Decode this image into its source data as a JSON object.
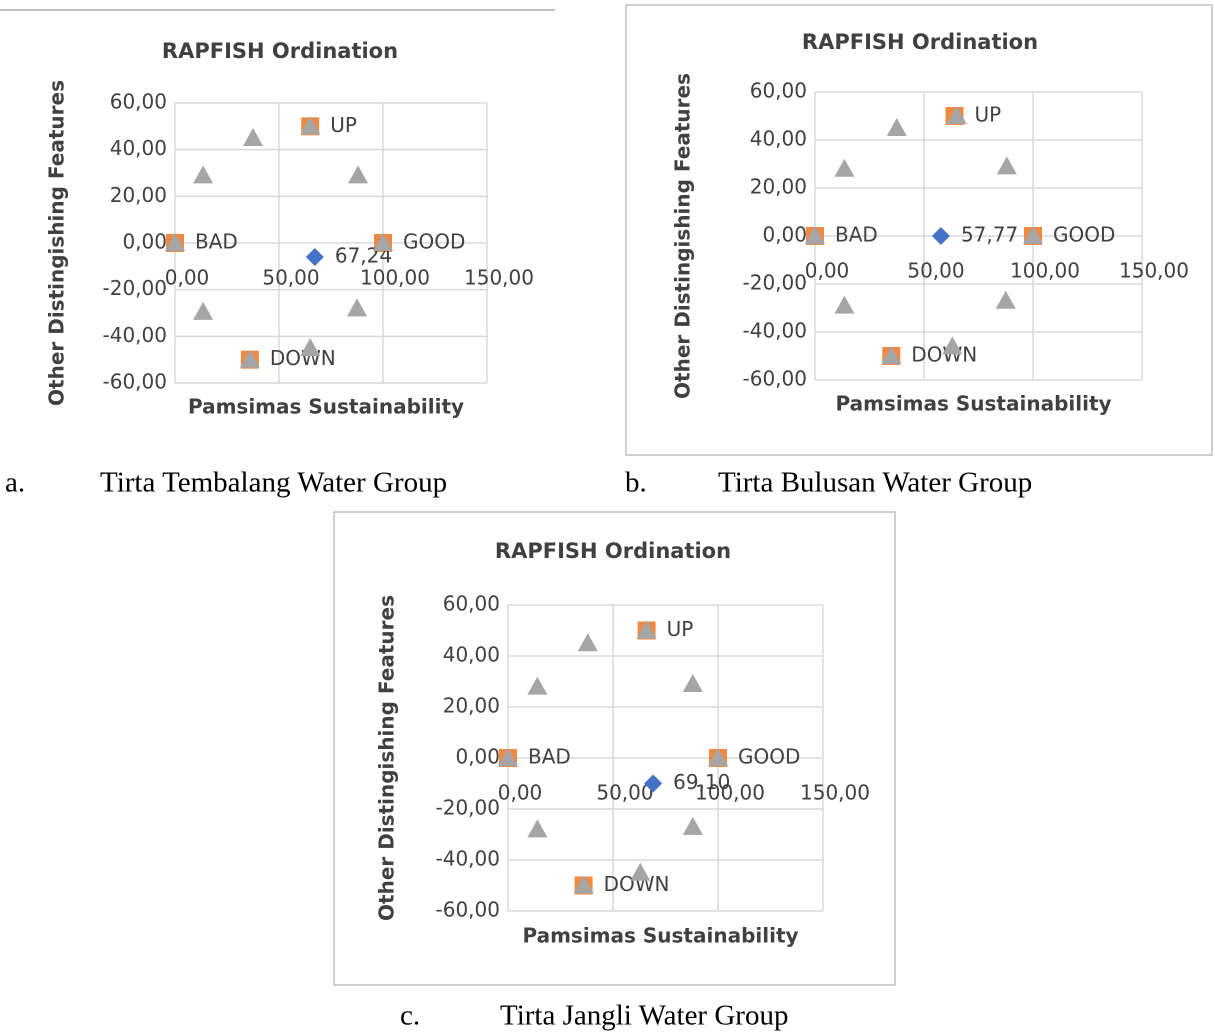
{
  "chart_data": [
    {
      "type": "scatter",
      "title": "RAPFISH Ordination",
      "x_label": "Pamsimas  Sustainability",
      "y_label": "Other Distingishing Features",
      "caption_letter": "a.",
      "caption": "Tirta Tembalang Water Group",
      "xlim": [
        0,
        150
      ],
      "ylim": [
        -60,
        60
      ],
      "xticks": [
        {
          "value": 0,
          "label": "0,00"
        },
        {
          "value": 50,
          "label": "50,00"
        },
        {
          "value": 100,
          "label": "100,00"
        },
        {
          "value": 150,
          "label": "150,00"
        }
      ],
      "yticks": [
        {
          "value": -60,
          "label": "-60,00"
        },
        {
          "value": -40,
          "label": "-40,00"
        },
        {
          "value": -20,
          "label": "-20,00"
        },
        {
          "value": 0,
          "label": "0,00"
        },
        {
          "value": 20,
          "label": "20,00"
        },
        {
          "value": 40,
          "label": "40,00"
        },
        {
          "value": 60,
          "label": "60,00"
        }
      ],
      "grid": true,
      "series": [
        {
          "marker": "triangle",
          "color": "#a5a5a5",
          "x": [
            13.5,
            37.5,
            65,
            88,
            0,
            100,
            13.5,
            87.5,
            65,
            36
          ],
          "values": [
            29,
            45,
            50,
            29,
            0,
            0,
            -29.5,
            -28,
            -45,
            -50
          ]
        },
        {
          "marker": "square",
          "color": "#ed7d31",
          "x": [
            0,
            100,
            65,
            36
          ],
          "values": [
            0,
            0,
            50,
            -50
          ],
          "labels": [
            "BAD",
            "GOOD",
            "UP",
            "DOWN"
          ]
        },
        {
          "marker": "diamond",
          "color": "#4472c4",
          "x": [
            67.24
          ],
          "values": [
            -6
          ],
          "labels": [
            "67,24"
          ]
        }
      ]
    },
    {
      "type": "scatter",
      "title": "RAPFISH Ordination",
      "x_label": "Pamsimas  Sustainability",
      "y_label": "Other Distingishing Features",
      "caption_letter": "b.",
      "caption": "Tirta Bulusan Water Group",
      "xlim": [
        0,
        150
      ],
      "ylim": [
        -60,
        60
      ],
      "xticks": [
        {
          "value": 0,
          "label": "0,00"
        },
        {
          "value": 50,
          "label": "50,00"
        },
        {
          "value": 100,
          "label": "100,00"
        },
        {
          "value": 150,
          "label": "150,00"
        }
      ],
      "yticks": [
        {
          "value": -60,
          "label": "-60,00"
        },
        {
          "value": -40,
          "label": "-40,00"
        },
        {
          "value": -20,
          "label": "-20,00"
        },
        {
          "value": 0,
          "label": "0,00"
        },
        {
          "value": 20,
          "label": "20,00"
        },
        {
          "value": 40,
          "label": "40,00"
        },
        {
          "value": 60,
          "label": "60,00"
        }
      ],
      "grid": true,
      "series": [
        {
          "marker": "triangle",
          "color": "#a5a5a5",
          "x": [
            13.5,
            37.5,
            65,
            88,
            0,
            100,
            13.5,
            87.5,
            63,
            35
          ],
          "values": [
            28,
            45,
            50,
            29,
            0,
            0,
            -29,
            -27,
            -46,
            -50
          ]
        },
        {
          "marker": "square",
          "color": "#ed7d31",
          "x": [
            0,
            100,
            64,
            35
          ],
          "values": [
            0,
            0,
            50,
            -50
          ],
          "labels": [
            "BAD",
            "GOOD",
            "UP",
            "DOWN"
          ]
        },
        {
          "marker": "diamond",
          "color": "#4472c4",
          "x": [
            57.77
          ],
          "values": [
            0
          ],
          "labels": [
            "57,77"
          ]
        }
      ]
    },
    {
      "type": "scatter",
      "title": "RAPFISH Ordination",
      "x_label": "Pamsimas  Sustainability",
      "y_label": "Other Distingishing Features",
      "caption_letter": "c.",
      "caption": "Tirta Jangli Water Group",
      "xlim": [
        0,
        150
      ],
      "ylim": [
        -60,
        60
      ],
      "xticks": [
        {
          "value": 0,
          "label": "0,00"
        },
        {
          "value": 50,
          "label": "50,00"
        },
        {
          "value": 100,
          "label": "100,00"
        },
        {
          "value": 150,
          "label": "150,00"
        }
      ],
      "yticks": [
        {
          "value": -60,
          "label": "-60,00"
        },
        {
          "value": -40,
          "label": "-40,00"
        },
        {
          "value": -20,
          "label": "-20,00"
        },
        {
          "value": 0,
          "label": "0,00"
        },
        {
          "value": 20,
          "label": "20,00"
        },
        {
          "value": 40,
          "label": "40,00"
        },
        {
          "value": 60,
          "label": "60,00"
        }
      ],
      "grid": true,
      "series": [
        {
          "marker": "triangle",
          "color": "#a5a5a5",
          "x": [
            14,
            38,
            66,
            88,
            0,
            100,
            14,
            88,
            63,
            36
          ],
          "values": [
            28,
            45,
            50,
            29,
            0,
            0,
            -28,
            -27,
            -45,
            -50
          ]
        },
        {
          "marker": "square",
          "color": "#ed7d31",
          "x": [
            0,
            100,
            66,
            36
          ],
          "values": [
            0,
            0,
            50,
            -50
          ],
          "labels": [
            "BAD",
            "GOOD",
            "UP",
            "DOWN"
          ]
        },
        {
          "marker": "diamond",
          "color": "#4472c4",
          "x": [
            69.1
          ],
          "values": [
            -10
          ],
          "labels": [
            "69,10"
          ]
        }
      ]
    }
  ]
}
